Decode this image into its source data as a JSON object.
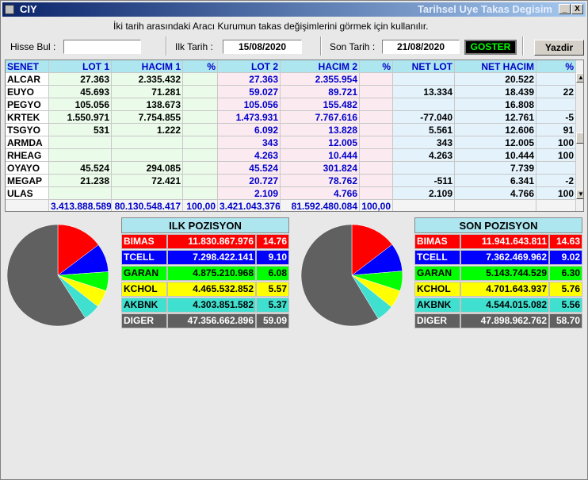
{
  "window": {
    "app_title": "CIY",
    "caption": "Tarihsel Uye Takas Degisim",
    "min_label": "_",
    "close_label": "X"
  },
  "description": "İki tarih arasındaki  Aracı Kurumun takas değişimlerini görmek için kullanılır.",
  "form": {
    "hisse_label": "Hisse Bul :",
    "hisse_value": "",
    "ilk_label": "Ilk Tarih :",
    "ilk_value": "15/08/2020",
    "son_label": "Son Tarih :",
    "son_value": "21/08/2020",
    "goster": "GOSTER",
    "yazdir": "Yazdir"
  },
  "table": {
    "headers": [
      "SENET",
      "LOT 1",
      "HACIM 1",
      "%",
      "LOT 2",
      "HACIM 2",
      "%",
      "NET LOT",
      "NET HACIM",
      "%"
    ],
    "rows": [
      [
        "ALCAR",
        "27.363",
        "2.335.432",
        "",
        "27.363",
        "2.355.954",
        "",
        "",
        "20.522",
        ""
      ],
      [
        "EUYO",
        "45.693",
        "71.281",
        "",
        "59.027",
        "89.721",
        "",
        "13.334",
        "18.439",
        "22"
      ],
      [
        "PEGYO",
        "105.056",
        "138.673",
        "",
        "105.056",
        "155.482",
        "",
        "",
        "16.808",
        ""
      ],
      [
        "KRTEK",
        "1.550.971",
        "7.754.855",
        "",
        "1.473.931",
        "7.767.616",
        "",
        "-77.040",
        "12.761",
        "-5"
      ],
      [
        "TSGYO",
        "531",
        "1.222",
        "",
        "6.092",
        "13.828",
        "",
        "5.561",
        "12.606",
        "91"
      ],
      [
        "ARMDA",
        "",
        "",
        "",
        "343",
        "12.005",
        "",
        "343",
        "12.005",
        "100"
      ],
      [
        "RHEAG",
        "",
        "",
        "",
        "4.263",
        "10.444",
        "",
        "4.263",
        "10.444",
        "100"
      ],
      [
        "OYAYO",
        "45.524",
        "294.085",
        "",
        "45.524",
        "301.824",
        "",
        "",
        "7.739",
        ""
      ],
      [
        "MEGAP",
        "21.238",
        "72.421",
        "",
        "20.727",
        "78.762",
        "",
        "-511",
        "6.341",
        "-2"
      ],
      [
        "ULAS",
        "",
        "",
        "",
        "2.109",
        "4.766",
        "",
        "2.109",
        "4.766",
        "100"
      ]
    ],
    "totals": [
      "",
      "3.413.888.589",
      "80.130.548.417",
      "100,00",
      "3.421.043.376",
      "81.592.480.084",
      "100,00",
      "",
      "",
      ""
    ]
  },
  "ilk_pozisyon": {
    "title": "ILK POZISYON",
    "rows": [
      {
        "name": "BIMAS",
        "value": "11.830.867.976",
        "pct": "14.76",
        "pct_num": 14.76,
        "color": "#ff0000"
      },
      {
        "name": "TCELL",
        "value": "7.298.422.141",
        "pct": "9.10",
        "pct_num": 9.1,
        "color": "#0000ff"
      },
      {
        "name": "GARAN",
        "value": "4.875.210.968",
        "pct": "6.08",
        "pct_num": 6.08,
        "color": "#00ff00"
      },
      {
        "name": "KCHOL",
        "value": "4.465.532.852",
        "pct": "5.57",
        "pct_num": 5.57,
        "color": "#ffff00"
      },
      {
        "name": "AKBNK",
        "value": "4.303.851.582",
        "pct": "5.37",
        "pct_num": 5.37,
        "color": "#40e0d0"
      },
      {
        "name": "DIGER",
        "value": "47.356.662.896",
        "pct": "59.09",
        "pct_num": 59.09,
        "color": "#606060"
      }
    ]
  },
  "son_pozisyon": {
    "title": "SON POZISYON",
    "rows": [
      {
        "name": "BIMAS",
        "value": "11.941.643.811",
        "pct": "14.63",
        "pct_num": 14.63,
        "color": "#ff0000"
      },
      {
        "name": "TCELL",
        "value": "7.362.469.962",
        "pct": "9.02",
        "pct_num": 9.02,
        "color": "#0000ff"
      },
      {
        "name": "GARAN",
        "value": "5.143.744.529",
        "pct": "6.30",
        "pct_num": 6.3,
        "color": "#00ff00"
      },
      {
        "name": "KCHOL",
        "value": "4.701.643.937",
        "pct": "5.76",
        "pct_num": 5.76,
        "color": "#ffff00"
      },
      {
        "name": "AKBNK",
        "value": "4.544.015.082",
        "pct": "5.56",
        "pct_num": 5.56,
        "color": "#40e0d0"
      },
      {
        "name": "DIGER",
        "value": "47.898.962.762",
        "pct": "58.70",
        "pct_num": 58.7,
        "color": "#606060"
      }
    ]
  },
  "colors": {
    "header_bg": "#aee6f0",
    "header_text": "#0000c8",
    "goster_text": "#00ff00"
  }
}
